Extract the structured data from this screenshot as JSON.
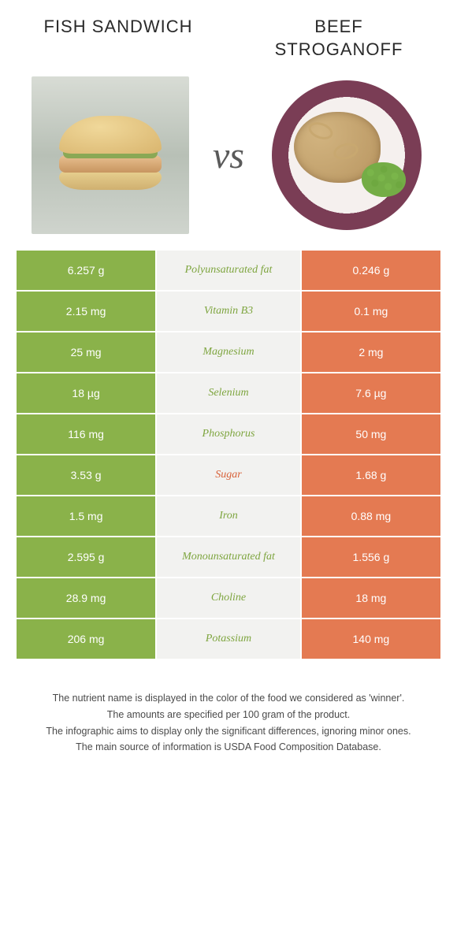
{
  "foods": {
    "left": {
      "name": "Fish Sandwich",
      "color": "#8ab24a"
    },
    "right": {
      "name": "Beef Stroganoff",
      "color": "#e47a52"
    }
  },
  "vs_label": "vs",
  "colors": {
    "left_cell": "#8ab24a",
    "right_cell": "#e47a52",
    "nutrient_bg": "#f2f2f0",
    "nutrient_left_text": "#7ea53f",
    "nutrient_right_text": "#d8623a"
  },
  "rows": [
    {
      "left": "6.257 g",
      "nutrient": "Polyunsaturated fat",
      "right": "0.246 g",
      "winner": "left"
    },
    {
      "left": "2.15 mg",
      "nutrient": "Vitamin B3",
      "right": "0.1 mg",
      "winner": "left"
    },
    {
      "left": "25 mg",
      "nutrient": "Magnesium",
      "right": "2 mg",
      "winner": "left"
    },
    {
      "left": "18 µg",
      "nutrient": "Selenium",
      "right": "7.6 µg",
      "winner": "left"
    },
    {
      "left": "116 mg",
      "nutrient": "Phosphorus",
      "right": "50 mg",
      "winner": "left"
    },
    {
      "left": "3.53 g",
      "nutrient": "Sugar",
      "right": "1.68 g",
      "winner": "right"
    },
    {
      "left": "1.5 mg",
      "nutrient": "Iron",
      "right": "0.88 mg",
      "winner": "left"
    },
    {
      "left": "2.595 g",
      "nutrient": "Monounsaturated fat",
      "right": "1.556 g",
      "winner": "left"
    },
    {
      "left": "28.9 mg",
      "nutrient": "Choline",
      "right": "18 mg",
      "winner": "left"
    },
    {
      "left": "206 mg",
      "nutrient": "Potassium",
      "right": "140 mg",
      "winner": "left"
    }
  ],
  "footnotes": [
    "The nutrient name is displayed in the color of the food we considered as 'winner'.",
    "The amounts are specified per 100 gram of the product.",
    "The infographic aims to display only the significant differences, ignoring minor ones.",
    "The main source of information is USDA Food Composition Database."
  ]
}
